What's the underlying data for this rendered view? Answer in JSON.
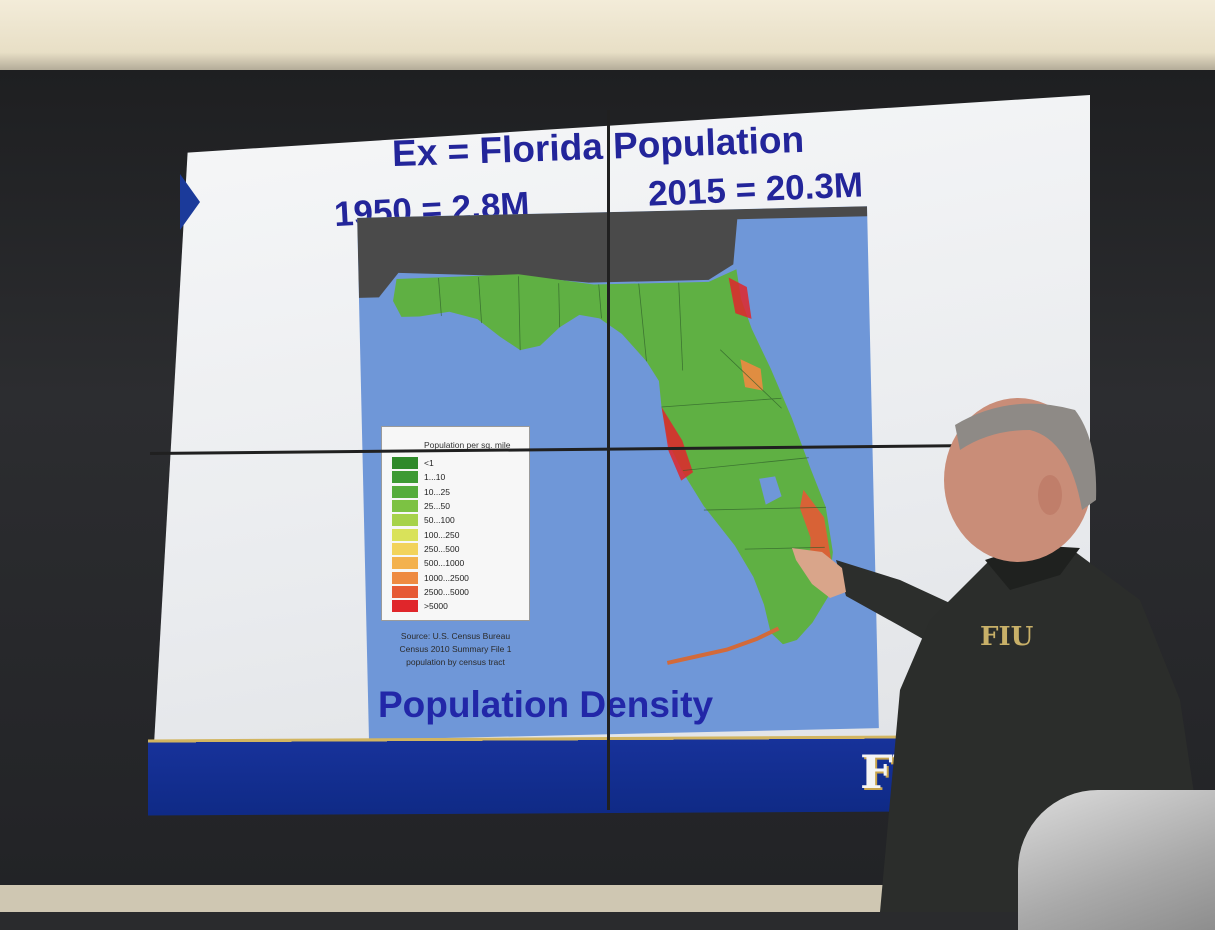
{
  "slide": {
    "title": "Ex = Florida Population",
    "left_stat": "1950 = 2.8M",
    "right_stat": "2015 = 20.3M",
    "caption": "Population Density",
    "logo_text": "FIU",
    "shirt_logo_text": "FIU"
  },
  "legend": {
    "title": "Population per sq. mile",
    "items": [
      {
        "label": "<1",
        "color": "#2f8a2a"
      },
      {
        "label": "1...10",
        "color": "#3d9a34"
      },
      {
        "label": "10...25",
        "color": "#55ad3c"
      },
      {
        "label": "25...50",
        "color": "#7cc243"
      },
      {
        "label": "50...100",
        "color": "#a6d24a"
      },
      {
        "label": "100...250",
        "color": "#d9e25a"
      },
      {
        "label": "250...500",
        "color": "#f2d35c"
      },
      {
        "label": "500...1000",
        "color": "#f3b14e"
      },
      {
        "label": "1000...2500",
        "color": "#ee8a41"
      },
      {
        "label": "2500...5000",
        "color": "#e65a35"
      },
      {
        "label": ">5000",
        "color": "#e0262b"
      }
    ]
  },
  "source": {
    "line1": "Source: U.S. Census Bureau",
    "line2": "Census 2010 Summary File 1",
    "line3": "population by census tract"
  },
  "colors": {
    "title_blue": "#23259a",
    "water": "#6f97d8",
    "land_gray": "#4a4a4a",
    "footer_blue": "#0f2a86",
    "footer_gold": "#d2b560"
  }
}
